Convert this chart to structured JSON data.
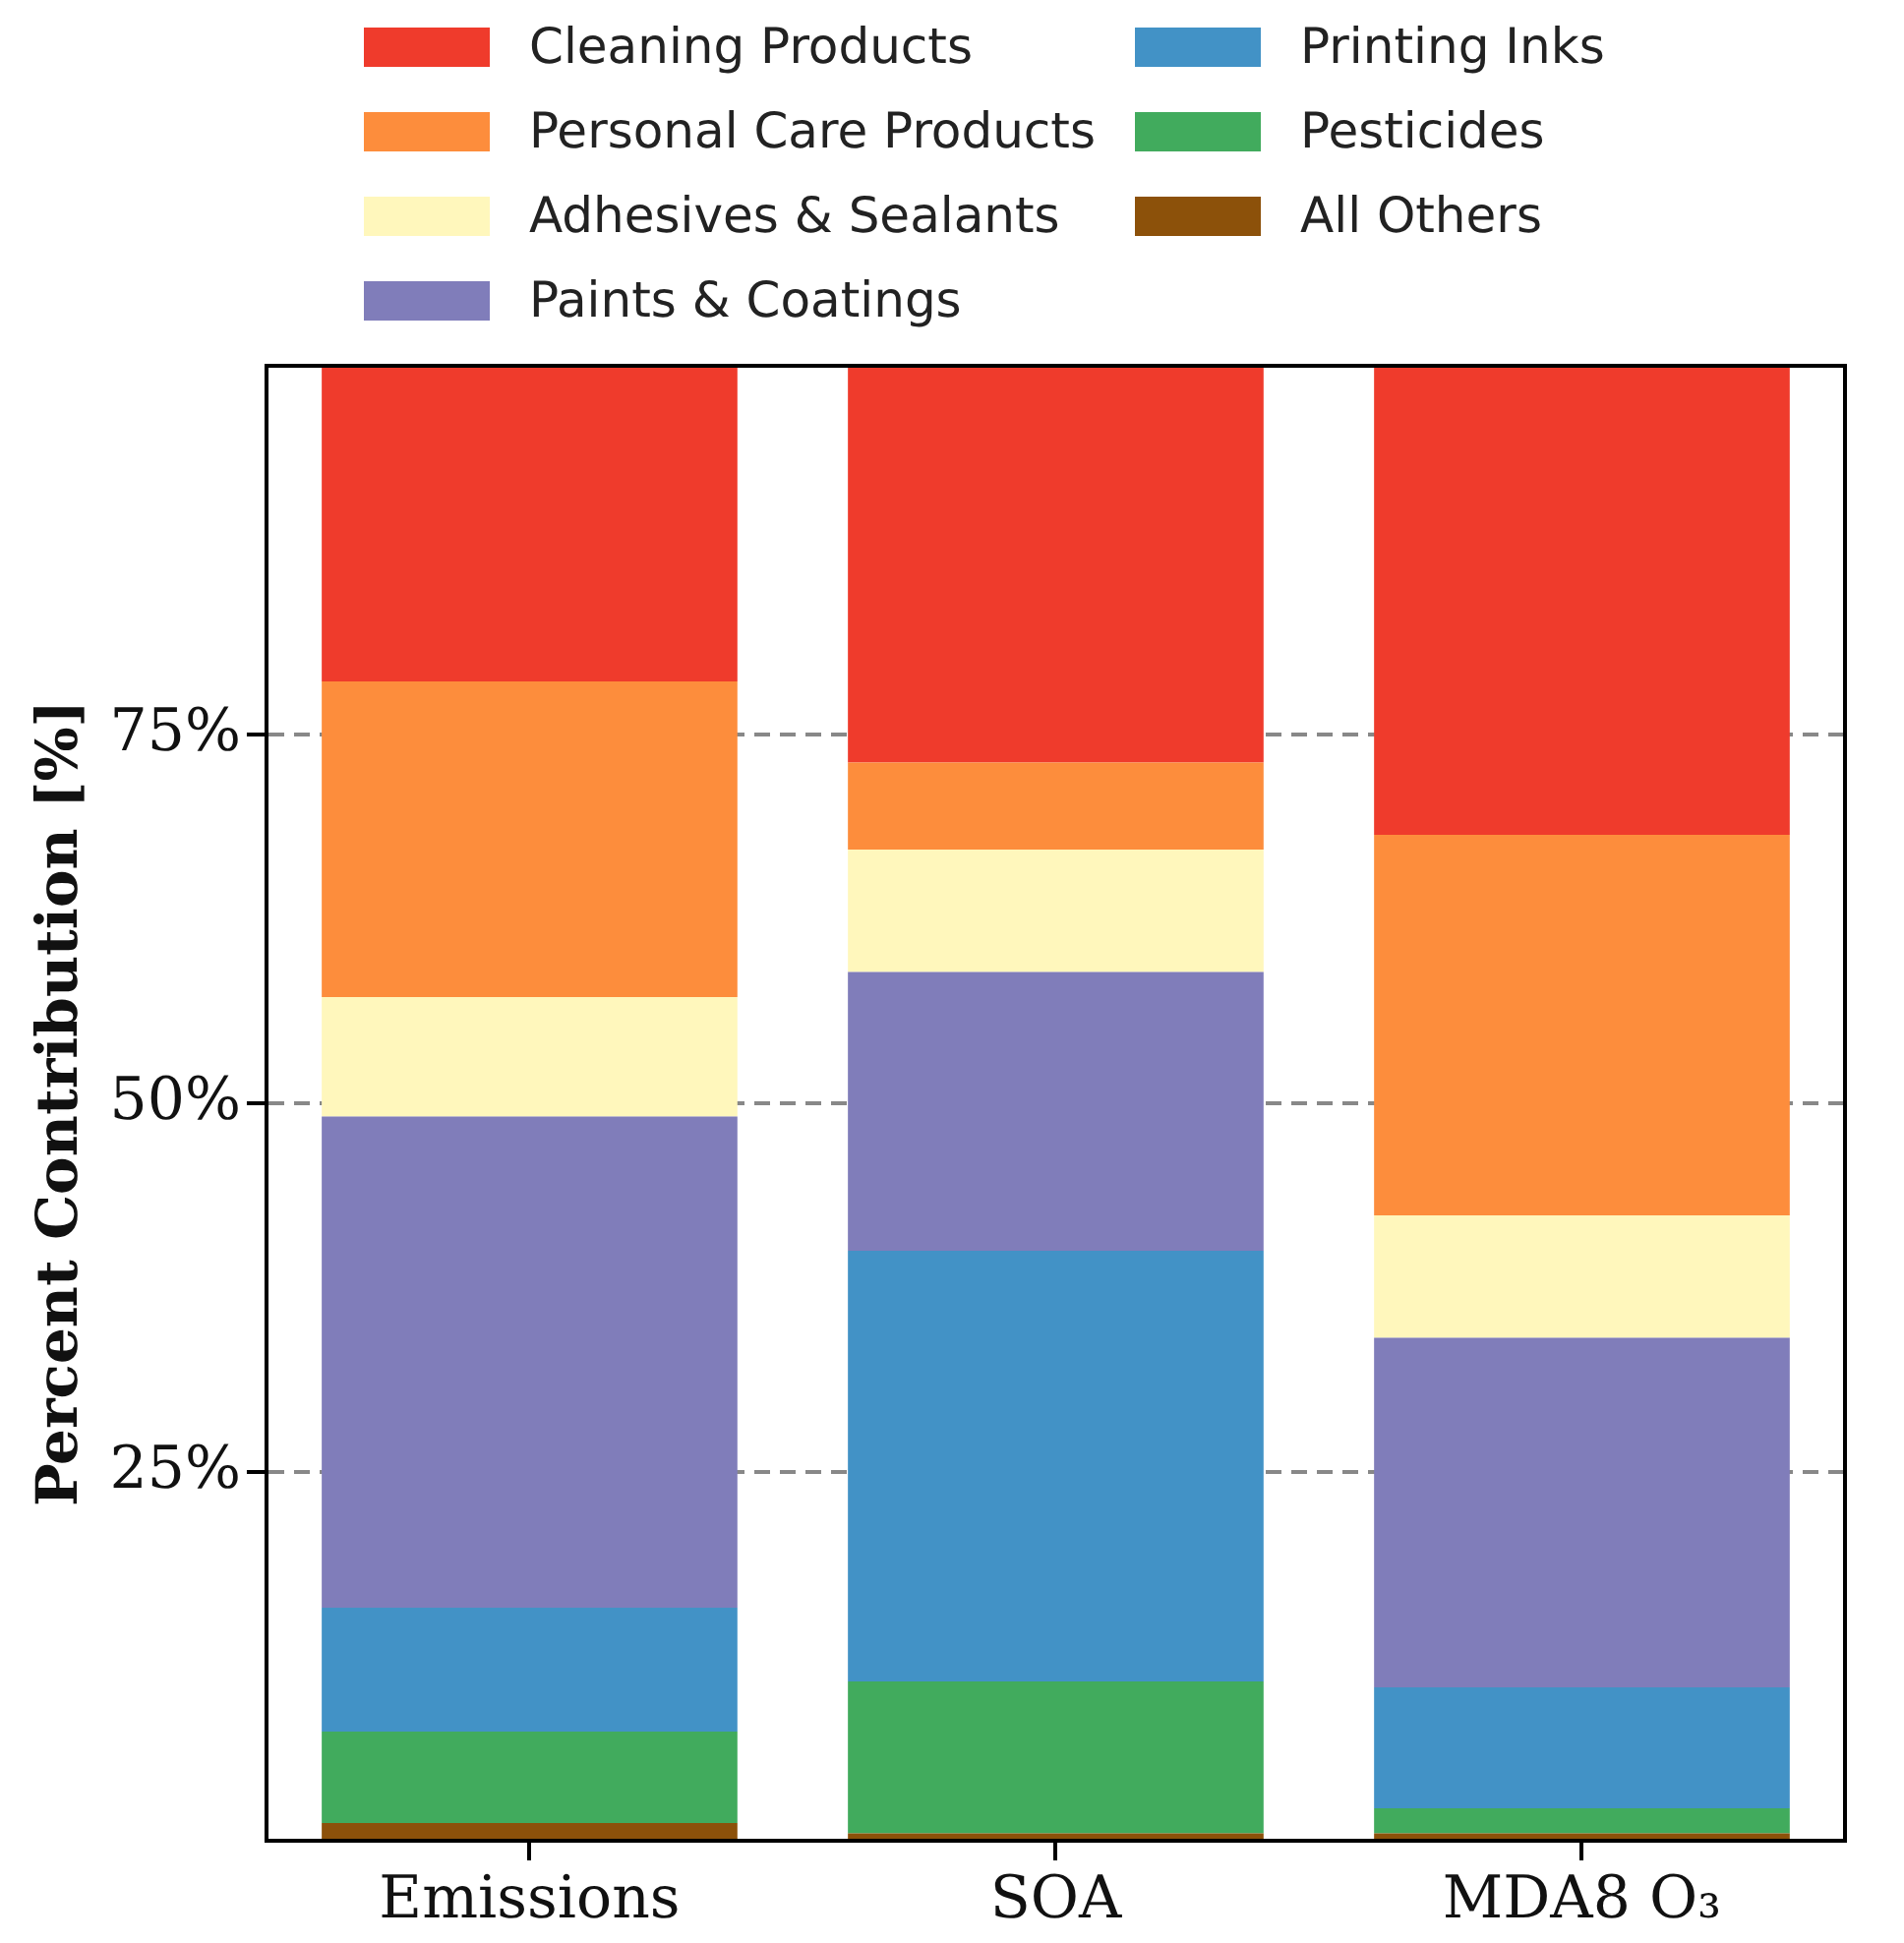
{
  "chart_data": {
    "type": "bar",
    "stacked": true,
    "ylabel": "Percent Contribution [%]",
    "categories": [
      "Emissions",
      "SOA",
      "MDA8 O₃"
    ],
    "series": [
      {
        "name": "All Others",
        "color": "#8c510a",
        "values": [
          1.2,
          0.5,
          0.5
        ]
      },
      {
        "name": "Pesticides",
        "color": "#41ab5d",
        "values": [
          6.2,
          10.3,
          1.7
        ]
      },
      {
        "name": "Printing Inks",
        "color": "#4292c6",
        "values": [
          8.4,
          29.2,
          8.2
        ]
      },
      {
        "name": "Paints & Coatings",
        "color": "#807dba",
        "values": [
          33.3,
          18.9,
          23.7
        ]
      },
      {
        "name": "Adhesives & Sealants",
        "color": "#fff7bc",
        "values": [
          8.1,
          8.3,
          8.3
        ]
      },
      {
        "name": "Personal Care Products",
        "color": "#fd8d3c",
        "values": [
          21.4,
          5.9,
          25.8
        ]
      },
      {
        "name": "Cleaning Products",
        "color": "#ef3b2c",
        "values": [
          21.4,
          26.9,
          31.8
        ]
      }
    ],
    "ylim": [
      0,
      100
    ],
    "yticks": [
      {
        "value": 25,
        "label": "25%"
      },
      {
        "value": 50,
        "label": "50%"
      },
      {
        "value": 75,
        "label": "75%"
      }
    ],
    "grid": "y",
    "legend": "top"
  }
}
